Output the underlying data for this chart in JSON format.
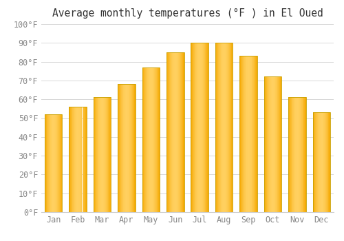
{
  "title": "Average monthly temperatures (°F ) in El Oued",
  "months": [
    "Jan",
    "Feb",
    "Mar",
    "Apr",
    "May",
    "Jun",
    "Jul",
    "Aug",
    "Sep",
    "Oct",
    "Nov",
    "Dec"
  ],
  "values": [
    52,
    56,
    61,
    68,
    77,
    85,
    90,
    90,
    83,
    72,
    61,
    53
  ],
  "bar_color_center": "#FFD060",
  "bar_color_edge": "#F5A800",
  "bar_border_color": "#C8A000",
  "ylim": [
    0,
    100
  ],
  "ytick_step": 10,
  "background_color": "#ffffff",
  "grid_color": "#d8d8d8",
  "title_fontsize": 10.5,
  "tick_fontsize": 8.5,
  "tick_color": "#888888"
}
